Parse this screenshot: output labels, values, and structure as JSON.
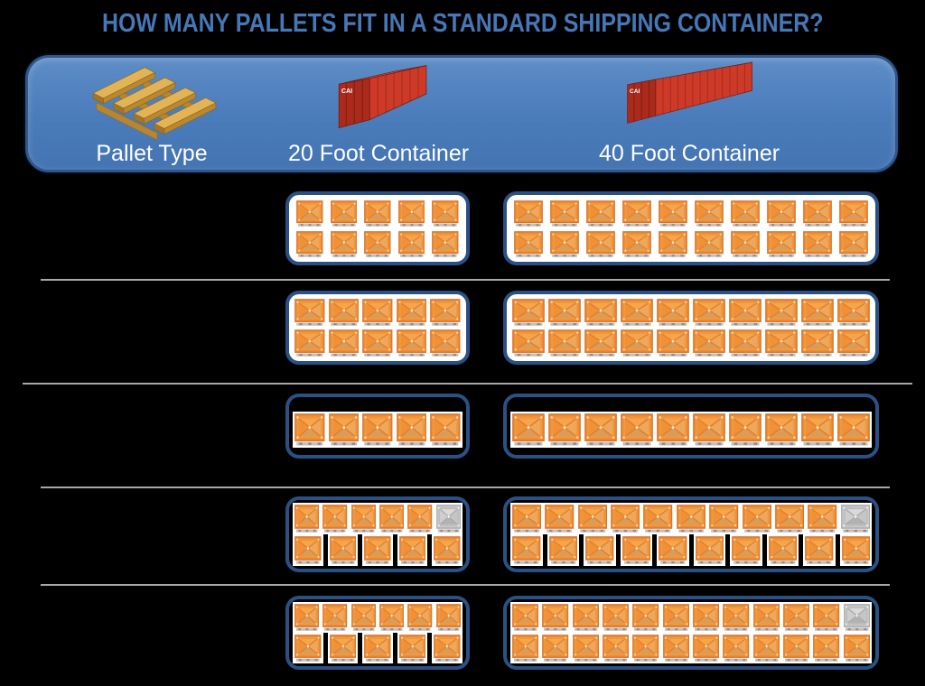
{
  "title": "HOW MANY PALLETS FIT IN A STANDARD SHIPPING CONTAINER?",
  "header": {
    "pallet_type_label": "Pallet Type",
    "container_20_label": "20 Foot Container",
    "container_40_label": "40 Foot Container",
    "container_brand_text": "CAI",
    "icons": {
      "pallet": "wooden-pallet-icon",
      "container_20": "red-shipping-container-20ft-icon",
      "container_40": "red-shipping-container-40ft-icon"
    }
  },
  "colors": {
    "page_background": "#000000",
    "title_text": "#4677b6",
    "header_band_fill": "#4a7bba",
    "header_band_border": "#30568a",
    "header_text": "#ffffff",
    "box_border": "#2a5184",
    "box_fill_rows_1_2": "#ffffff",
    "crate_orange": "#ee8c34",
    "crate_gray": "#c9c9c9",
    "divider": "#a8a8a8"
  },
  "pallet_rows": [
    {
      "row": 1,
      "crate_style": "squarish",
      "container_20": {
        "fill": "white",
        "pallet_count": {
          "orange": 10,
          "gray": 0
        },
        "lines": [
          {
            "orange": 5,
            "gray": 0,
            "packed": true
          },
          {
            "orange": 5,
            "gray": 0,
            "packed": true
          }
        ]
      },
      "container_40": {
        "fill": "white",
        "pallet_count": {
          "orange": 20,
          "gray": 0
        },
        "lines": [
          {
            "orange": 10,
            "gray": 0,
            "packed": true
          },
          {
            "orange": 10,
            "gray": 0,
            "packed": true
          }
        ]
      }
    },
    {
      "row": 2,
      "crate_style": "wide",
      "container_20": {
        "fill": "white",
        "pallet_count": {
          "orange": 10,
          "gray": 0
        },
        "lines": [
          {
            "orange": 5,
            "gray": 0,
            "packed": true
          },
          {
            "orange": 5,
            "gray": 0,
            "packed": true
          }
        ]
      },
      "container_40": {
        "fill": "white",
        "pallet_count": {
          "orange": 20,
          "gray": 0
        },
        "lines": [
          {
            "orange": 10,
            "gray": 0,
            "packed": true
          },
          {
            "orange": 10,
            "gray": 0,
            "packed": true
          }
        ]
      }
    },
    {
      "row": 3,
      "crate_style": "wide",
      "container_20": {
        "fill": "transparent",
        "pallet_count": {
          "orange": 5,
          "gray": 0
        },
        "lines": [
          {
            "orange": 5,
            "gray": 0,
            "packed": true
          }
        ]
      },
      "container_40": {
        "fill": "transparent",
        "pallet_count": {
          "orange": 10,
          "gray": 0
        },
        "lines": [
          {
            "orange": 10,
            "gray": 0,
            "packed": true
          }
        ]
      }
    },
    {
      "row": 4,
      "crate_style": "wide",
      "container_20": {
        "fill": "transparent",
        "pallet_count": {
          "orange": 10,
          "gray": 1
        },
        "lines": [
          {
            "orange": 5,
            "gray": 1,
            "packed": true
          },
          {
            "orange": 5,
            "gray": 0,
            "packed": false
          }
        ]
      },
      "container_40": {
        "fill": "transparent",
        "pallet_count": {
          "orange": 20,
          "gray": 1
        },
        "lines": [
          {
            "orange": 10,
            "gray": 1,
            "packed": true
          },
          {
            "orange": 10,
            "gray": 0,
            "packed": false
          }
        ]
      }
    },
    {
      "row": 5,
      "crate_style": "wide",
      "container_20": {
        "fill": "transparent",
        "pallet_count": {
          "orange": 11,
          "gray": 0
        },
        "lines": [
          {
            "orange": 6,
            "gray": 0,
            "packed": true
          },
          {
            "orange": 5,
            "gray": 0,
            "packed": false
          }
        ]
      },
      "container_40": {
        "fill": "transparent",
        "pallet_count": {
          "orange": 23,
          "gray": 1
        },
        "lines": [
          {
            "orange": 11,
            "gray": 1,
            "packed": true
          },
          {
            "orange": 12,
            "gray": 0,
            "packed": true
          }
        ]
      }
    }
  ]
}
